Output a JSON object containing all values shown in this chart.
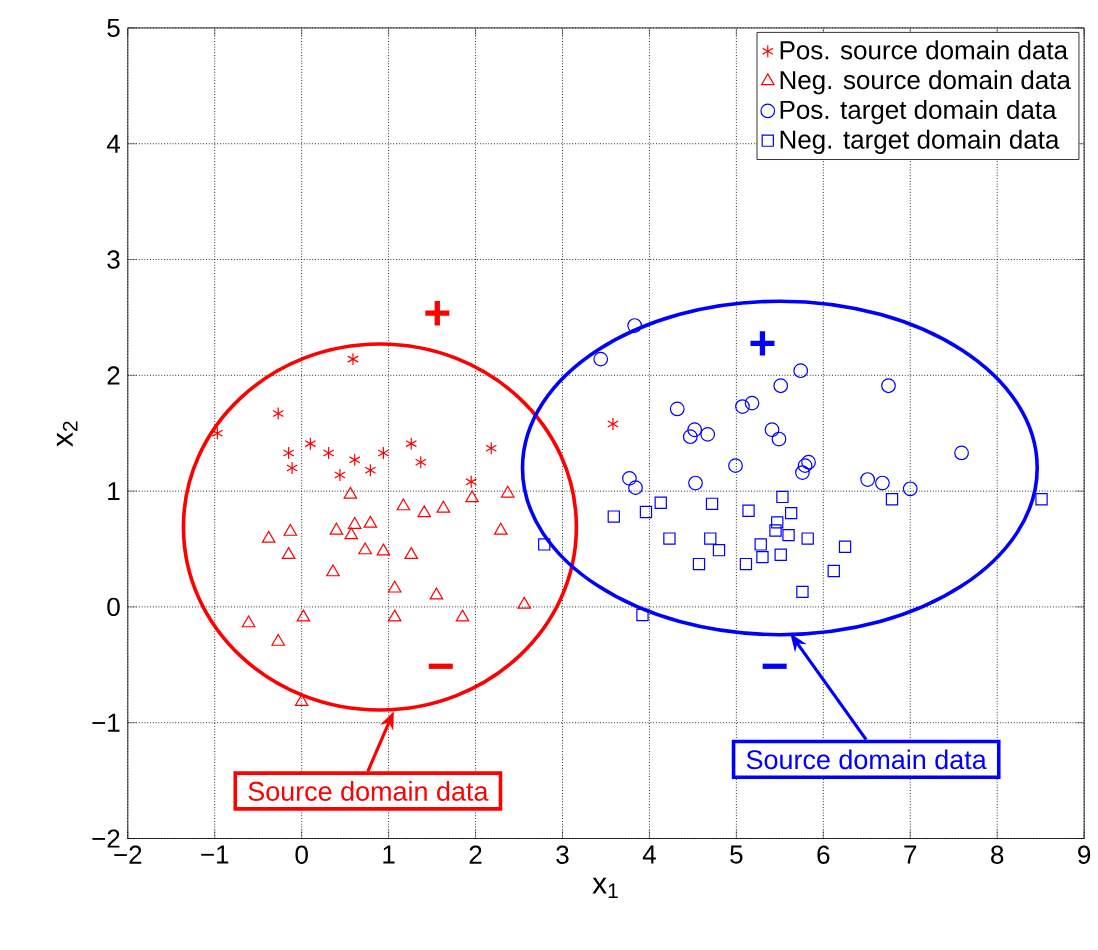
{
  "chart_data": {
    "type": "scatter",
    "xlabel": "x$_{1}$",
    "ylabel": "x$_{2}$",
    "xlim": [
      -2,
      9
    ],
    "ylim": [
      -2,
      5
    ],
    "xticks": [
      {
        "value": -2,
        "label": "−2"
      },
      {
        "value": -1,
        "label": "−1"
      },
      0,
      1,
      2,
      3,
      4,
      5,
      6,
      7,
      8,
      9
    ],
    "yticks": [
      {
        "value": -2,
        "label": "−2"
      },
      {
        "value": -1,
        "label": "−1"
      },
      0,
      1,
      2,
      3,
      4,
      5
    ],
    "grid": true,
    "legend": "top right",
    "series": [
      {
        "name": "Pos. source domain data",
        "color": "#ff0000",
        "marker": "cross",
        "x": [
          0.59,
          -0.27,
          -0.97,
          -0.15,
          -0.11,
          0.1,
          0.31,
          0.44,
          0.61,
          0.79,
          0.94,
          1.26,
          1.37,
          1.95,
          2.18,
          3.58
        ],
        "values": [
          2.14,
          1.67,
          1.5,
          1.33,
          1.2,
          1.41,
          1.33,
          1.14,
          1.27,
          1.18,
          1.33,
          1.41,
          1.25,
          1.08,
          1.37,
          1.58
        ]
      },
      {
        "name": "Neg. source domain data",
        "color": "#ff0000",
        "marker": "triangle",
        "x": [
          0.56,
          1.17,
          1.41,
          1.63,
          1.96,
          2.37,
          -0.38,
          -0.13,
          -0.15,
          0.4,
          0.61,
          0.79,
          0.57,
          0.73,
          0.94,
          1.26,
          2.29,
          0.36,
          1.07,
          1.55,
          2.56,
          1.85,
          1.07,
          0.02,
          -0.61,
          -0.27,
          0.0
        ],
        "values": [
          0.97,
          0.87,
          0.81,
          0.85,
          0.94,
          0.98,
          0.59,
          0.65,
          0.45,
          0.66,
          0.71,
          0.72,
          0.62,
          0.49,
          0.48,
          0.45,
          0.66,
          0.3,
          0.16,
          0.1,
          0.02,
          -0.09,
          -0.09,
          -0.09,
          -0.14,
          -0.3,
          -0.82
        ]
      },
      {
        "name": "Pos. target domain data",
        "color": "#0000ff",
        "marker": "circle",
        "x": [
          3.83,
          3.44,
          5.74,
          5.51,
          6.75,
          4.32,
          5.07,
          5.18,
          4.52,
          4.47,
          4.67,
          5.41,
          5.49,
          4.99,
          5.79,
          5.83,
          5.76,
          7.59,
          3.77,
          3.84,
          4.53,
          6.51,
          6.68,
          7.0
        ],
        "values": [
          2.43,
          2.14,
          2.04,
          1.91,
          1.91,
          1.71,
          1.73,
          1.76,
          1.53,
          1.47,
          1.49,
          1.53,
          1.45,
          1.22,
          1.22,
          1.25,
          1.16,
          1.33,
          1.11,
          1.03,
          1.07,
          1.1,
          1.07,
          1.02
        ]
      },
      {
        "name": "Neg. target domain data",
        "color": "#0000ff",
        "marker": "square",
        "x": [
          3.59,
          3.96,
          4.13,
          4.72,
          5.14,
          5.53,
          5.63,
          5.47,
          5.45,
          4.23,
          4.7,
          4.8,
          4.57,
          5.11,
          5.28,
          5.3,
          5.51,
          5.6,
          5.82,
          6.25,
          6.12,
          6.79,
          8.51,
          5.76,
          3.92,
          2.79
        ],
        "values": [
          0.78,
          0.82,
          0.9,
          0.89,
          0.83,
          0.95,
          0.81,
          0.73,
          0.66,
          0.59,
          0.59,
          0.49,
          0.37,
          0.37,
          0.54,
          0.43,
          0.45,
          0.62,
          0.59,
          0.52,
          0.31,
          0.93,
          0.93,
          0.13,
          -0.07,
          0.54
        ]
      }
    ],
    "annotations": [
      "+",
      "−",
      "+",
      "−",
      "Source domain data",
      "Source domain data"
    ]
  }
}
